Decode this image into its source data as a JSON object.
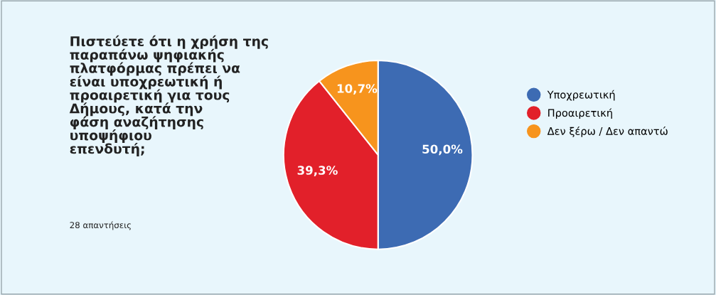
{
  "chart_data": {
    "type": "pie",
    "title": "Πιστεύετε ότι η χρήση της\nπαραπάνω ψηφιακής\nπλατφόρμας πρέπει να\nείναι υποχρεωτική ή\nπροαιρετική για τους\nΔήμους, κατά την\nφάση αναζήτησης\nυποψήφιου\nεπενδυτή;",
    "annotations": [
      "28 απαντήσεις"
    ],
    "categories": [
      "Υποχρεωτική",
      "Προαιρετική",
      "Δεν ξέρω / Δεν απαντώ"
    ],
    "values": [
      50.0,
      39.3,
      10.7
    ],
    "value_labels": [
      "50,0%",
      "39,3%",
      "10,7%"
    ],
    "colors": [
      "#3d6bb3",
      "#e2202a",
      "#f7941d"
    ],
    "legend": "right"
  }
}
